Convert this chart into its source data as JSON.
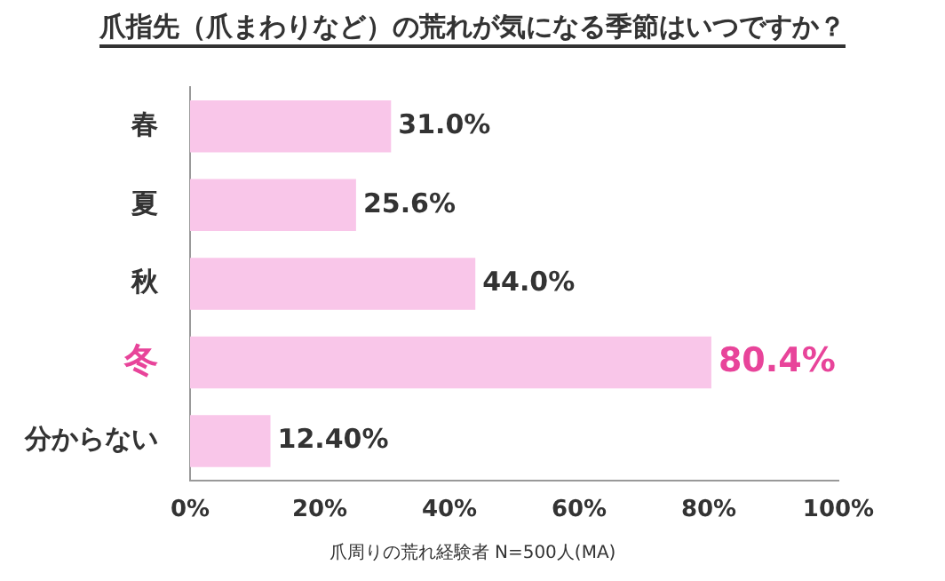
{
  "chart_data": {
    "type": "bar",
    "orientation": "horizontal",
    "title": "爪指先（爪まわりなど）の荒れが気になる季節はいつですか？",
    "xlabel": "爪周りの荒れ経験者 N=500人(MA)",
    "categories": [
      "春",
      "夏",
      "秋",
      "冬",
      "分からない"
    ],
    "values": [
      31.0,
      25.6,
      44.0,
      80.4,
      12.4
    ],
    "value_labels": [
      "31.0%",
      "25.6%",
      "44.0%",
      "80.4%",
      "12.40%"
    ],
    "color": "#f9c6e9",
    "xlim": [
      0,
      100
    ],
    "xticks": [
      {
        "value": 0,
        "label": "0%"
      },
      {
        "value": 20,
        "label": "20%"
      },
      {
        "value": 40,
        "label": "40%"
      },
      {
        "value": 60,
        "label": "60%"
      },
      {
        "value": 80,
        "label": "80%"
      },
      {
        "value": 100,
        "label": "100%"
      }
    ],
    "grid": false,
    "legend": false
  }
}
